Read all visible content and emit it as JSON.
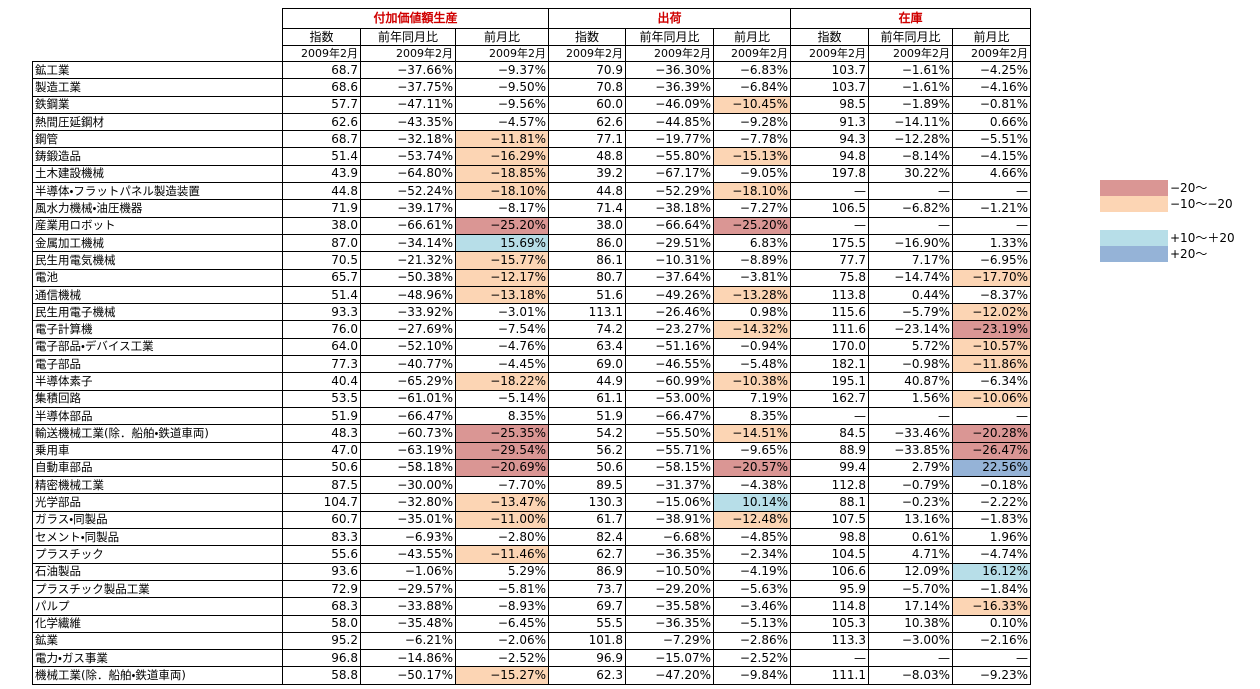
{
  "table": {
    "groups": [
      "付加価値額生産",
      "出荷",
      "在庫"
    ],
    "subheaders": [
      "指数",
      "前年同月比",
      "前月比"
    ],
    "period": "2009年2月",
    "rows": [
      [
        "鉱工業",
        "68.7",
        "−37.66%",
        "−9.37%",
        "70.9",
        "−36.30%",
        "−6.83%",
        "103.7",
        "−1.61%",
        "−4.25%"
      ],
      [
        "製造工業",
        "68.6",
        "−37.75%",
        "−9.50%",
        "70.8",
        "−36.39%",
        "−6.84%",
        "103.7",
        "−1.61%",
        "−4.16%"
      ],
      [
        "鉄鋼業",
        "57.7",
        "−47.11%",
        "−9.56%",
        "60.0",
        "−46.09%",
        "−10.45%",
        "98.5",
        "−1.89%",
        "−0.81%"
      ],
      [
        "熱間圧延鋼材",
        "62.6",
        "−43.35%",
        "−4.57%",
        "62.6",
        "−44.85%",
        "−9.28%",
        "91.3",
        "−14.11%",
        "0.66%"
      ],
      [
        "鋼管",
        "68.7",
        "−32.18%",
        "−11.81%",
        "77.1",
        "−19.77%",
        "−7.78%",
        "94.3",
        "−12.28%",
        "−5.51%"
      ],
      [
        "鋳鍛造品",
        "51.4",
        "−53.74%",
        "−16.29%",
        "48.8",
        "−55.80%",
        "−15.13%",
        "94.8",
        "−8.14%",
        "−4.15%"
      ],
      [
        "土木建設機械",
        "43.9",
        "−64.80%",
        "−18.85%",
        "39.2",
        "−67.17%",
        "−9.05%",
        "197.8",
        "30.22%",
        "4.66%"
      ],
      [
        "半導体・フラットパネル製造装置",
        "44.8",
        "−52.24%",
        "−18.10%",
        "44.8",
        "−52.29%",
        "−18.10%",
        "—",
        "—",
        "—"
      ],
      [
        "風水力機械・油圧機器",
        "71.9",
        "−39.17%",
        "−8.17%",
        "71.4",
        "−38.18%",
        "−7.27%",
        "106.5",
        "−6.82%",
        "−1.21%"
      ],
      [
        "産業用ロボット",
        "38.0",
        "−66.61%",
        "−25.20%",
        "38.0",
        "−66.64%",
        "−25.20%",
        "—",
        "—",
        "—"
      ],
      [
        "金属加工機械",
        "87.0",
        "−34.14%",
        "15.69%",
        "86.0",
        "−29.51%",
        "6.83%",
        "175.5",
        "−16.90%",
        "1.33%"
      ],
      [
        "民生用電気機械",
        "70.5",
        "−21.32%",
        "−15.77%",
        "86.1",
        "−10.31%",
        "−8.89%",
        "77.7",
        "7.17%",
        "−6.95%"
      ],
      [
        "電池",
        "65.7",
        "−50.38%",
        "−12.17%",
        "80.7",
        "−37.64%",
        "−3.81%",
        "75.8",
        "−14.74%",
        "−17.70%"
      ],
      [
        "通信機械",
        "51.4",
        "−48.96%",
        "−13.18%",
        "51.6",
        "−49.26%",
        "−13.28%",
        "113.8",
        "0.44%",
        "−8.37%"
      ],
      [
        "民生用電子機械",
        "93.3",
        "−33.92%",
        "−3.01%",
        "113.1",
        "−26.46%",
        "0.98%",
        "115.6",
        "−5.79%",
        "−12.02%"
      ],
      [
        "電子計算機",
        "76.0",
        "−27.69%",
        "−7.54%",
        "74.2",
        "−23.27%",
        "−14.32%",
        "111.6",
        "−23.14%",
        "−23.19%"
      ],
      [
        "電子部品・デバイス工業",
        "64.0",
        "−52.10%",
        "−4.76%",
        "63.4",
        "−51.16%",
        "−0.94%",
        "170.0",
        "5.72%",
        "−10.57%"
      ],
      [
        "電子部品",
        "77.3",
        "−40.77%",
        "−4.45%",
        "69.0",
        "−46.55%",
        "−5.48%",
        "182.1",
        "−0.98%",
        "−11.86%"
      ],
      [
        "半導体素子",
        "40.4",
        "−65.29%",
        "−18.22%",
        "44.9",
        "−60.99%",
        "−10.38%",
        "195.1",
        "40.87%",
        "−6.34%"
      ],
      [
        "集積回路",
        "53.5",
        "−61.01%",
        "−5.14%",
        "61.1",
        "−53.00%",
        "7.19%",
        "162.7",
        "1.56%",
        "−10.06%"
      ],
      [
        "半導体部品",
        "51.9",
        "−66.47%",
        "8.35%",
        "51.9",
        "−66.47%",
        "8.35%",
        "—",
        "—",
        "—"
      ],
      [
        "輸送機械工業(除．船舶・鉄道車両)",
        "48.3",
        "−60.73%",
        "−25.35%",
        "54.2",
        "−55.50%",
        "−14.51%",
        "84.5",
        "−33.46%",
        "−20.28%"
      ],
      [
        "乗用車",
        "47.0",
        "−63.19%",
        "−29.54%",
        "56.2",
        "−55.71%",
        "−9.65%",
        "88.9",
        "−33.85%",
        "−26.47%"
      ],
      [
        "自動車部品",
        "50.6",
        "−58.18%",
        "−20.69%",
        "50.6",
        "−58.15%",
        "−20.57%",
        "99.4",
        "2.79%",
        "22.56%"
      ],
      [
        "精密機械工業",
        "87.5",
        "−30.00%",
        "−7.70%",
        "89.5",
        "−31.37%",
        "−4.38%",
        "112.8",
        "−0.79%",
        "−0.18%"
      ],
      [
        "光学部品",
        "104.7",
        "−32.80%",
        "−13.47%",
        "130.3",
        "−15.06%",
        "10.14%",
        "88.1",
        "−0.23%",
        "−2.22%"
      ],
      [
        "ガラス・同製品",
        "60.7",
        "−35.01%",
        "−11.00%",
        "61.7",
        "−38.91%",
        "−12.48%",
        "107.5",
        "13.16%",
        "−1.83%"
      ],
      [
        "セメント・同製品",
        "83.3",
        "−6.93%",
        "−2.80%",
        "82.4",
        "−6.68%",
        "−4.85%",
        "98.8",
        "0.61%",
        "1.96%"
      ],
      [
        "プラスチック",
        "55.6",
        "−43.55%",
        "−11.46%",
        "62.7",
        "−36.35%",
        "−2.34%",
        "104.5",
        "4.71%",
        "−4.74%"
      ],
      [
        "石油製品",
        "93.6",
        "−1.06%",
        "5.29%",
        "86.9",
        "−10.50%",
        "−4.19%",
        "106.6",
        "12.09%",
        "16.12%"
      ],
      [
        "プラスチック製品工業",
        "72.9",
        "−29.57%",
        "−5.81%",
        "73.7",
        "−29.20%",
        "−5.63%",
        "95.9",
        "−5.70%",
        "−1.84%"
      ],
      [
        "パルプ",
        "68.3",
        "−33.88%",
        "−8.93%",
        "69.7",
        "−35.58%",
        "−3.46%",
        "114.8",
        "17.14%",
        "−16.33%"
      ],
      [
        "化学繊維",
        "58.0",
        "−35.48%",
        "−6.45%",
        "55.5",
        "−36.35%",
        "−5.13%",
        "105.3",
        "10.38%",
        "0.10%"
      ],
      [
        "鉱業",
        "95.2",
        "−6.21%",
        "−2.06%",
        "101.8",
        "−7.29%",
        "−2.86%",
        "113.3",
        "−3.00%",
        "−2.16%"
      ],
      [
        "電力・ガス事業",
        "96.8",
        "−14.86%",
        "−2.52%",
        "96.9",
        "−15.07%",
        "−2.52%",
        "—",
        "—",
        "—"
      ],
      [
        "機械工業(除．船舶・鉄道車両)",
        "58.8",
        "−50.17%",
        "−15.27%",
        "62.3",
        "−47.20%",
        "−9.84%",
        "111.1",
        "−8.03%",
        "−9.23%"
      ]
    ]
  },
  "legend": [
    {
      "label": "−20～",
      "color": "#da9694",
      "range": [
        null,
        -20
      ]
    },
    {
      "label": "−10～−20",
      "color": "#fcd5b4",
      "range": [
        -20,
        -10
      ]
    },
    {
      "label": "+10～＋20",
      "color": "#b7dee8",
      "range": [
        10,
        20
      ]
    },
    {
      "label": "+20～",
      "color": "#95b3d7",
      "range": [
        20,
        null
      ]
    }
  ]
}
